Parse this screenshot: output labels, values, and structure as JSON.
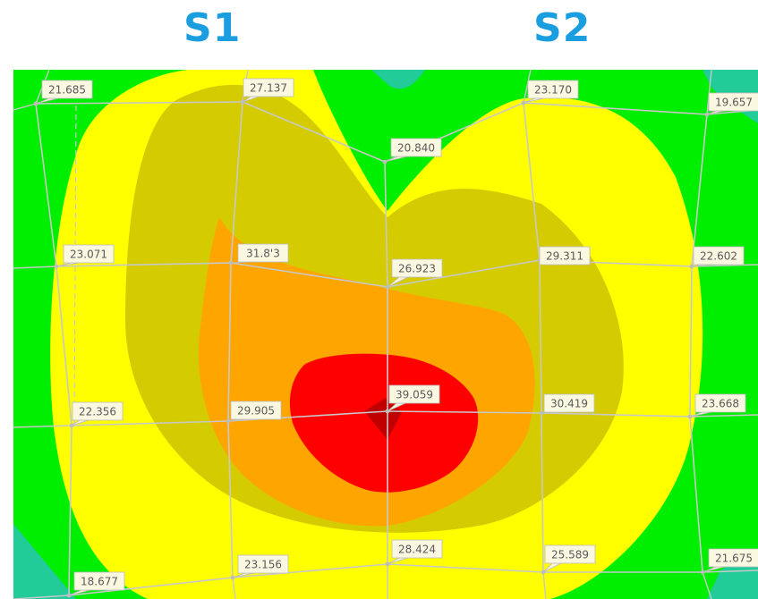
{
  "headers": {
    "left": "S1",
    "right": "S2"
  },
  "colors": {
    "header": "#1a9ee0",
    "band_teal": "#22cc99",
    "band_green": "#00ee00",
    "band_yellow": "#ffff00",
    "band_olive": "#d4cc00",
    "band_orange": "#ffa500",
    "band_red": "#ff0000",
    "band_darkred": "#c00000",
    "mesh": "#c8c8c8"
  },
  "nodes": [
    {
      "id": "n-21-685",
      "label": "21.685"
    },
    {
      "id": "n-27-137",
      "label": "27.137"
    },
    {
      "id": "n-23-170",
      "label": "23.170"
    },
    {
      "id": "n-19-657",
      "label": "19.657"
    },
    {
      "id": "n-20-840",
      "label": "20.840"
    },
    {
      "id": "n-23-071",
      "label": "23.071"
    },
    {
      "id": "n-31-813",
      "label": "31.8'3"
    },
    {
      "id": "n-26-923",
      "label": "26.923"
    },
    {
      "id": "n-29-311",
      "label": "29.311"
    },
    {
      "id": "n-22-602",
      "label": "22.602"
    },
    {
      "id": "n-22-356",
      "label": "22.356"
    },
    {
      "id": "n-29-905",
      "label": "29.905"
    },
    {
      "id": "n-39-059",
      "label": "39.059"
    },
    {
      "id": "n-30-419",
      "label": "30.419"
    },
    {
      "id": "n-23-668",
      "label": "23.668"
    },
    {
      "id": "n-18-677",
      "label": "18.677"
    },
    {
      "id": "n-23-156",
      "label": "23.156"
    },
    {
      "id": "n-28-424",
      "label": "28.424"
    },
    {
      "id": "n-25-589",
      "label": "25.589"
    },
    {
      "id": "n-21-675",
      "label": "21.675"
    }
  ]
}
